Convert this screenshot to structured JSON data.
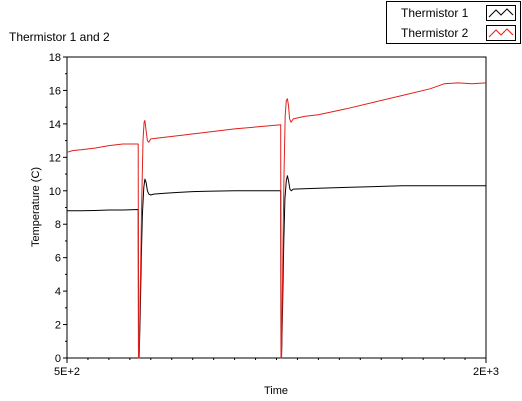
{
  "chart_data": {
    "type": "line",
    "title": "Thermistor 1 and 2",
    "xlabel": "Time",
    "ylabel": "Temperature (C)",
    "xlim": [
      500,
      2000
    ],
    "ylim": [
      0,
      18
    ],
    "x_tick_labels": [
      "5E+2",
      "2E+3"
    ],
    "y_ticks": [
      0,
      2,
      4,
      6,
      8,
      10,
      12,
      14,
      16,
      18
    ],
    "grid": false,
    "legend": "top-right",
    "series": [
      {
        "name": "Thermistor 1",
        "color": "#000000",
        "points": [
          [
            500,
            8.8
          ],
          [
            550,
            8.8
          ],
          [
            600,
            8.82
          ],
          [
            650,
            8.85
          ],
          [
            700,
            8.85
          ],
          [
            755,
            8.88
          ],
          [
            756,
            0.0
          ],
          [
            758,
            0.0
          ],
          [
            762,
            2.5
          ],
          [
            766,
            6.0
          ],
          [
            770,
            8.6
          ],
          [
            775,
            10.2
          ],
          [
            779,
            10.7
          ],
          [
            783,
            10.5
          ],
          [
            788,
            10.0
          ],
          [
            793,
            9.8
          ],
          [
            800,
            9.75
          ],
          [
            810,
            9.8
          ],
          [
            850,
            9.85
          ],
          [
            900,
            9.9
          ],
          [
            950,
            9.95
          ],
          [
            1000,
            9.97
          ],
          [
            1100,
            10.0
          ],
          [
            1200,
            10.0
          ],
          [
            1265,
            10.0
          ],
          [
            1266,
            0.0
          ],
          [
            1268,
            0.0
          ],
          [
            1272,
            3.0
          ],
          [
            1276,
            7.0
          ],
          [
            1280,
            9.5
          ],
          [
            1285,
            10.6
          ],
          [
            1289,
            10.9
          ],
          [
            1293,
            10.6
          ],
          [
            1298,
            10.1
          ],
          [
            1303,
            10.0
          ],
          [
            1310,
            10.1
          ],
          [
            1400,
            10.15
          ],
          [
            1500,
            10.2
          ],
          [
            1600,
            10.25
          ],
          [
            1700,
            10.3
          ],
          [
            1800,
            10.3
          ],
          [
            1900,
            10.3
          ],
          [
            2000,
            10.3
          ]
        ]
      },
      {
        "name": "Thermistor 2",
        "color": "#e0201b",
        "points": [
          [
            500,
            12.3
          ],
          [
            520,
            12.4
          ],
          [
            550,
            12.45
          ],
          [
            600,
            12.55
          ],
          [
            650,
            12.7
          ],
          [
            700,
            12.8
          ],
          [
            755,
            12.8
          ],
          [
            756,
            0.0
          ],
          [
            758,
            0.0
          ],
          [
            762,
            4.0
          ],
          [
            767,
            9.0
          ],
          [
            772,
            13.0
          ],
          [
            776,
            14.1
          ],
          [
            779,
            14.2
          ],
          [
            783,
            13.6
          ],
          [
            788,
            13.0
          ],
          [
            793,
            12.9
          ],
          [
            800,
            13.1
          ],
          [
            850,
            13.2
          ],
          [
            900,
            13.3
          ],
          [
            1000,
            13.5
          ],
          [
            1100,
            13.7
          ],
          [
            1200,
            13.85
          ],
          [
            1265,
            13.95
          ],
          [
            1266,
            0.0
          ],
          [
            1268,
            0.0
          ],
          [
            1272,
            5.0
          ],
          [
            1277,
            11.0
          ],
          [
            1281,
            14.5
          ],
          [
            1285,
            15.4
          ],
          [
            1289,
            15.5
          ],
          [
            1293,
            15.1
          ],
          [
            1297,
            14.3
          ],
          [
            1302,
            14.1
          ],
          [
            1310,
            14.3
          ],
          [
            1350,
            14.45
          ],
          [
            1400,
            14.55
          ],
          [
            1500,
            14.9
          ],
          [
            1600,
            15.3
          ],
          [
            1700,
            15.7
          ],
          [
            1800,
            16.1
          ],
          [
            1850,
            16.4
          ],
          [
            1900,
            16.45
          ],
          [
            1950,
            16.4
          ],
          [
            2000,
            16.45
          ]
        ]
      }
    ]
  }
}
